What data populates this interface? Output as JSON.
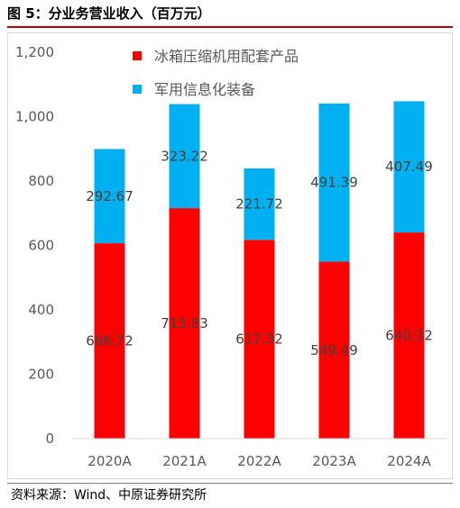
{
  "figure": {
    "title": "图 5：分业务营业收入（百万元）",
    "source": "资料来源：Wind、中原证券研究所"
  },
  "colors": {
    "series1": "#ff0000",
    "series2": "#00b0f0",
    "axis_text": "#595959",
    "data_label": "#404040",
    "title_rule": "#c00000"
  },
  "chart_data": {
    "type": "bar",
    "stacked": true,
    "categories": [
      "2020A",
      "2021A",
      "2022A",
      "2023A",
      "2024A"
    ],
    "series": [
      {
        "name": "冰箱压缩机用配套产品",
        "values": [
          606.72,
          715.83,
          617.32,
          549.49,
          640.32
        ],
        "labels": [
          "606.72",
          "715.83",
          "617.32",
          "549.49",
          "640.32"
        ]
      },
      {
        "name": "军用信息化装备",
        "values": [
          292.67,
          323.22,
          221.72,
          491.39,
          407.49
        ],
        "labels": [
          "292.67",
          "323.22",
          "221.72",
          "491.39",
          "407.49"
        ]
      }
    ],
    "ylim": [
      0,
      1200
    ],
    "yticks": [
      0,
      200,
      400,
      600,
      800,
      1000,
      1200
    ],
    "ytick_labels": [
      "0",
      "200",
      "400",
      "600",
      "800",
      "1,000",
      "1,200"
    ],
    "legend_position": "top-center",
    "grid": false
  }
}
